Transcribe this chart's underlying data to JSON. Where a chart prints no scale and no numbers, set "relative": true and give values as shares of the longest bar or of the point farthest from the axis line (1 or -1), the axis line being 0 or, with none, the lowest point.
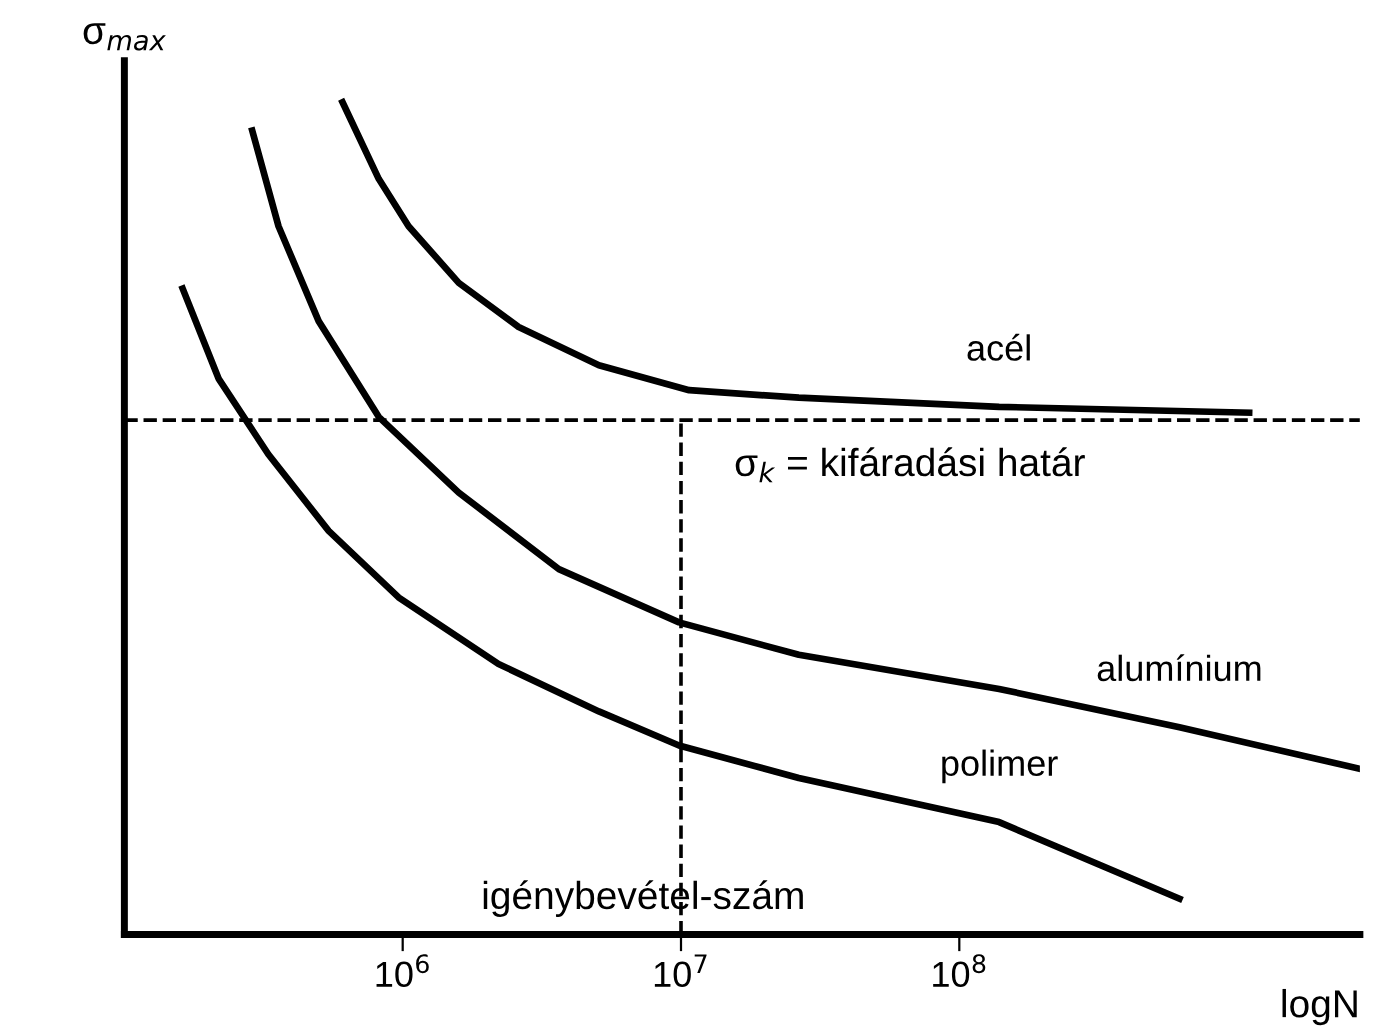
{
  "chart_data": {
    "type": "line",
    "relative": true,
    "log": "x",
    "xlabel": "logN",
    "ylabel": "σ$_{max}$",
    "xlim": [
      100000,
      2750000000
    ],
    "xticks": [
      {
        "value": 1000000,
        "label": "10$^{6}$"
      },
      {
        "value": 10000000,
        "label": "10$^{7}$"
      },
      {
        "value": 100000000,
        "label": "10$^{8}$"
      }
    ],
    "tick_labels": "x",
    "grid": false,
    "legend": false,
    "marker": "none",
    "line_style": "solid",
    "series": [
      {
        "name": "acél",
        "color": "#000000",
        "x": [
          608000,
          820000,
          1050000,
          1590000,
          2610000,
          5070000,
          10700000,
          26500000,
          139000000,
          1100000000
        ],
        "values": [
          1.0,
          0.908,
          0.851,
          0.783,
          0.73,
          0.684,
          0.654,
          0.645,
          0.634,
          0.627
        ]
      },
      {
        "name": "alumínium",
        "color": "#000000",
        "x": [
          288000,
          358000,
          499000,
          820000,
          1590000,
          3640000,
          9840000,
          26500000,
          139000000,
          618000000,
          2750000000
        ],
        "values": [
          0.966,
          0.851,
          0.737,
          0.622,
          0.531,
          0.439,
          0.375,
          0.336,
          0.295,
          0.249,
          0.199
        ]
      },
      {
        "name": "polimer",
        "color": "#000000",
        "x": [
          162000,
          218000,
          329000,
          542000,
          967000,
          2210000,
          5070000,
          9840000,
          26500000,
          139000000,
          618000000
        ],
        "values": [
          0.776,
          0.668,
          0.577,
          0.485,
          0.405,
          0.325,
          0.268,
          0.227,
          0.188,
          0.135,
          0.043
        ]
      }
    ],
    "ref_lines": [
      {
        "axis": "y",
        "value": 0.618,
        "label": "σ$_{k}$ = kifáradási határ",
        "line_style": "dashed",
        "color": "#000000"
      },
      {
        "axis": "x",
        "value": 10000000,
        "line_style": "dashed",
        "color": "#000000"
      }
    ],
    "annotations": [
      "igénybevétel-szám"
    ]
  }
}
